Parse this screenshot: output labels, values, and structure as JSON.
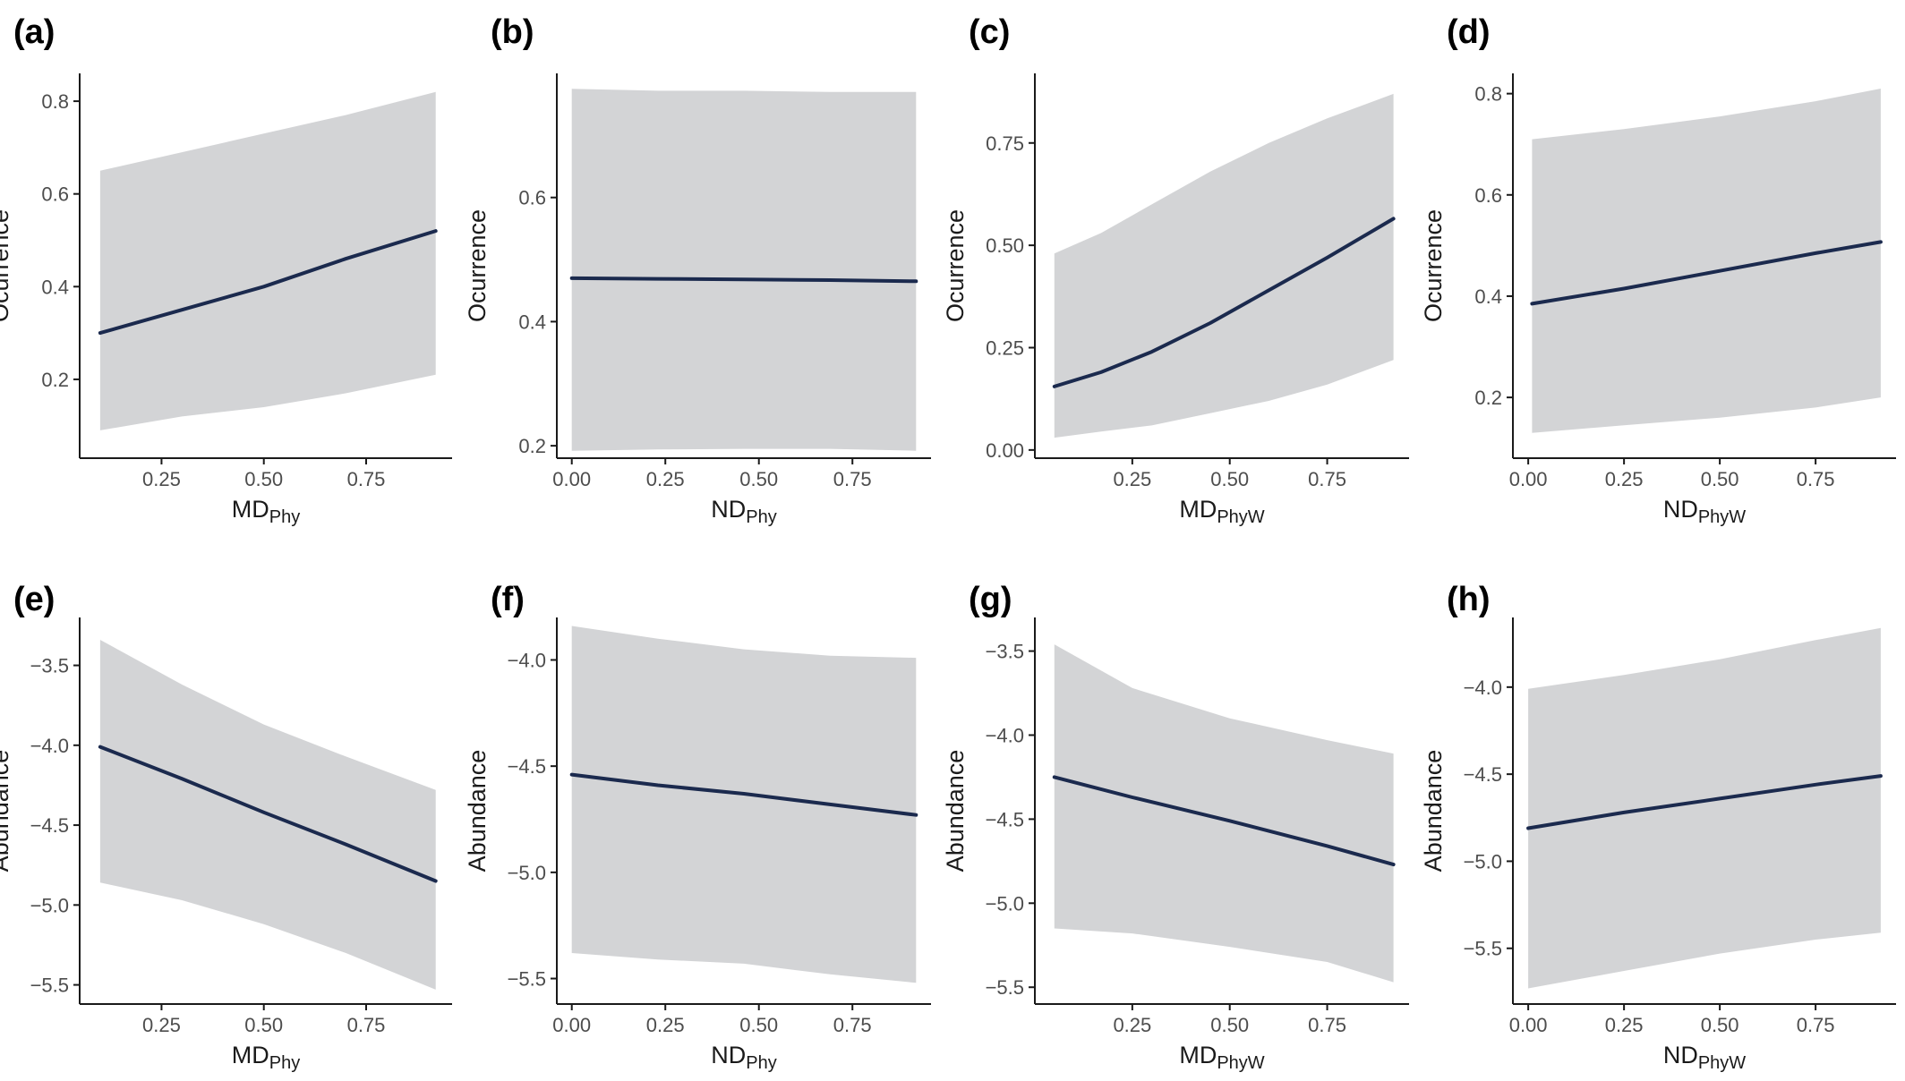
{
  "colors": {
    "line": "#1b2a4e",
    "band": "#d3d4d6",
    "axis": "#1a1a1a",
    "tick_text": "#4d4d4d"
  },
  "chart_data": [
    {
      "panel": "(a)",
      "type": "line",
      "xlabel": "MD",
      "xlabel_sub": "Phy",
      "ylabel": "Ocurrence",
      "xlim": [
        0.05,
        0.96
      ],
      "ylim": [
        0.03,
        0.86
      ],
      "xticks": [
        0.25,
        0.5,
        0.75
      ],
      "xtick_labels": [
        "0.25",
        "0.50",
        "0.75"
      ],
      "yticks": [
        0.2,
        0.4,
        0.6,
        0.8
      ],
      "ytick_labels": [
        "0.2",
        "0.4",
        "0.6",
        "0.8"
      ],
      "x": [
        0.1,
        0.3,
        0.5,
        0.7,
        0.92
      ],
      "y": [
        0.3,
        0.35,
        0.4,
        0.46,
        0.52
      ],
      "lower": [
        0.09,
        0.12,
        0.14,
        0.17,
        0.21
      ],
      "upper": [
        0.65,
        0.69,
        0.73,
        0.77,
        0.82
      ]
    },
    {
      "panel": "(b)",
      "type": "line",
      "xlabel": "ND",
      "xlabel_sub": "Phy",
      "ylabel": "Ocurrence",
      "xlim": [
        -0.04,
        0.96
      ],
      "ylim": [
        0.18,
        0.8
      ],
      "xticks": [
        0,
        0.25,
        0.5,
        0.75
      ],
      "xtick_labels": [
        "0.00",
        "0.25",
        "0.50",
        "0.75"
      ],
      "yticks": [
        0.2,
        0.4,
        0.6
      ],
      "ytick_labels": [
        "0.2",
        "0.4",
        "0.6"
      ],
      "x": [
        0,
        0.23,
        0.46,
        0.69,
        0.92
      ],
      "y": [
        0.47,
        0.469,
        0.468,
        0.467,
        0.465
      ],
      "lower": [
        0.192,
        0.194,
        0.195,
        0.195,
        0.192
      ],
      "upper": [
        0.775,
        0.772,
        0.772,
        0.77,
        0.77
      ]
    },
    {
      "panel": "(c)",
      "type": "line",
      "xlabel": "MD",
      "xlabel_sub": "PhyW",
      "ylabel": "Ocurrence",
      "xlim": [
        0.0,
        0.96
      ],
      "ylim": [
        -0.02,
        0.92
      ],
      "xticks": [
        0.25,
        0.5,
        0.75
      ],
      "xtick_labels": [
        "0.25",
        "0.50",
        "0.75"
      ],
      "yticks": [
        0,
        0.25,
        0.5,
        0.75
      ],
      "ytick_labels": [
        "0.00",
        "0.25",
        "0.50",
        "0.75"
      ],
      "x": [
        0.05,
        0.17,
        0.3,
        0.45,
        0.6,
        0.75,
        0.92
      ],
      "y": [
        0.155,
        0.19,
        0.24,
        0.31,
        0.39,
        0.47,
        0.565
      ],
      "lower": [
        0.03,
        0.045,
        0.06,
        0.09,
        0.12,
        0.16,
        0.22
      ],
      "upper": [
        0.48,
        0.53,
        0.6,
        0.68,
        0.75,
        0.81,
        0.87
      ]
    },
    {
      "panel": "(d)",
      "type": "line",
      "xlabel": "ND",
      "xlabel_sub": "PhyW",
      "ylabel": "Ocurrence",
      "xlim": [
        -0.04,
        0.96
      ],
      "ylim": [
        0.08,
        0.84
      ],
      "xticks": [
        0,
        0.25,
        0.5,
        0.75
      ],
      "xtick_labels": [
        "0.00",
        "0.25",
        "0.50",
        "0.75"
      ],
      "yticks": [
        0.2,
        0.4,
        0.6,
        0.8
      ],
      "ytick_labels": [
        "0.2",
        "0.4",
        "0.6",
        "0.8"
      ],
      "x": [
        0.01,
        0.25,
        0.5,
        0.75,
        0.92
      ],
      "y": [
        0.385,
        0.415,
        0.45,
        0.485,
        0.507
      ],
      "lower": [
        0.13,
        0.145,
        0.16,
        0.18,
        0.2
      ],
      "upper": [
        0.71,
        0.73,
        0.755,
        0.785,
        0.81
      ]
    },
    {
      "panel": "(e)",
      "type": "line",
      "xlabel": "MD",
      "xlabel_sub": "Phy",
      "ylabel": "Abundance",
      "xlim": [
        0.05,
        0.96
      ],
      "ylim": [
        -5.62,
        -3.2
      ],
      "xticks": [
        0.25,
        0.5,
        0.75
      ],
      "xtick_labels": [
        "0.25",
        "0.50",
        "0.75"
      ],
      "yticks": [
        -5.5,
        -5.0,
        -4.5,
        -4.0,
        -3.5
      ],
      "ytick_labels": [
        "−5.5",
        "−5.0",
        "−4.5",
        "−4.0",
        "−3.5"
      ],
      "x": [
        0.1,
        0.3,
        0.5,
        0.7,
        0.92
      ],
      "y": [
        -4.01,
        -4.21,
        -4.42,
        -4.62,
        -4.85
      ],
      "lower": [
        -4.86,
        -4.97,
        -5.12,
        -5.3,
        -5.53
      ],
      "upper": [
        -3.34,
        -3.62,
        -3.87,
        -4.07,
        -4.28
      ]
    },
    {
      "panel": "(f)",
      "type": "line",
      "xlabel": "ND",
      "xlabel_sub": "Phy",
      "ylabel": "Abundance",
      "xlim": [
        -0.04,
        0.96
      ],
      "ylim": [
        -5.62,
        -3.8
      ],
      "xticks": [
        0,
        0.25,
        0.5,
        0.75
      ],
      "xtick_labels": [
        "0.00",
        "0.25",
        "0.50",
        "0.75"
      ],
      "yticks": [
        -5.5,
        -5.0,
        -4.5,
        -4.0
      ],
      "ytick_labels": [
        "−5.5",
        "−5.0",
        "−4.5",
        "−4.0"
      ],
      "x": [
        0,
        0.23,
        0.46,
        0.69,
        0.92
      ],
      "y": [
        -4.54,
        -4.59,
        -4.63,
        -4.68,
        -4.73
      ],
      "lower": [
        -5.38,
        -5.41,
        -5.43,
        -5.48,
        -5.52
      ],
      "upper": [
        -3.84,
        -3.9,
        -3.95,
        -3.98,
        -3.99
      ]
    },
    {
      "panel": "(g)",
      "type": "line",
      "xlabel": "MD",
      "xlabel_sub": "PhyW",
      "ylabel": "Abundance",
      "xlim": [
        0.0,
        0.96
      ],
      "ylim": [
        -5.6,
        -3.3
      ],
      "xticks": [
        0.25,
        0.5,
        0.75
      ],
      "xtick_labels": [
        "0.25",
        "0.50",
        "0.75"
      ],
      "yticks": [
        -5.5,
        -5.0,
        -4.5,
        -4.0,
        -3.5
      ],
      "ytick_labels": [
        "−5.5",
        "−5.0",
        "−4.5",
        "−4.0",
        "−3.5"
      ],
      "x": [
        0.05,
        0.25,
        0.5,
        0.75,
        0.92
      ],
      "y": [
        -4.25,
        -4.37,
        -4.51,
        -4.66,
        -4.77
      ],
      "lower": [
        -5.15,
        -5.18,
        -5.26,
        -5.35,
        -5.47
      ],
      "upper": [
        -3.46,
        -3.72,
        -3.9,
        -4.03,
        -4.11
      ]
    },
    {
      "panel": "(h)",
      "type": "line",
      "xlabel": "ND",
      "xlabel_sub": "PhyW",
      "ylabel": "Abundance",
      "xlim": [
        -0.04,
        0.96
      ],
      "ylim": [
        -5.82,
        -3.6
      ],
      "xticks": [
        0,
        0.25,
        0.5,
        0.75
      ],
      "xtick_labels": [
        "0.00",
        "0.25",
        "0.50",
        "0.75"
      ],
      "yticks": [
        -5.5,
        -5.0,
        -4.5,
        -4.0
      ],
      "ytick_labels": [
        "−5.5",
        "−5.0",
        "−4.5",
        "−4.0"
      ],
      "x": [
        0,
        0.25,
        0.5,
        0.75,
        0.92
      ],
      "y": [
        -4.81,
        -4.72,
        -4.64,
        -4.56,
        -4.51
      ],
      "lower": [
        -5.73,
        -5.63,
        -5.53,
        -5.45,
        -5.41
      ],
      "upper": [
        -4.01,
        -3.93,
        -3.84,
        -3.73,
        -3.66
      ]
    }
  ]
}
